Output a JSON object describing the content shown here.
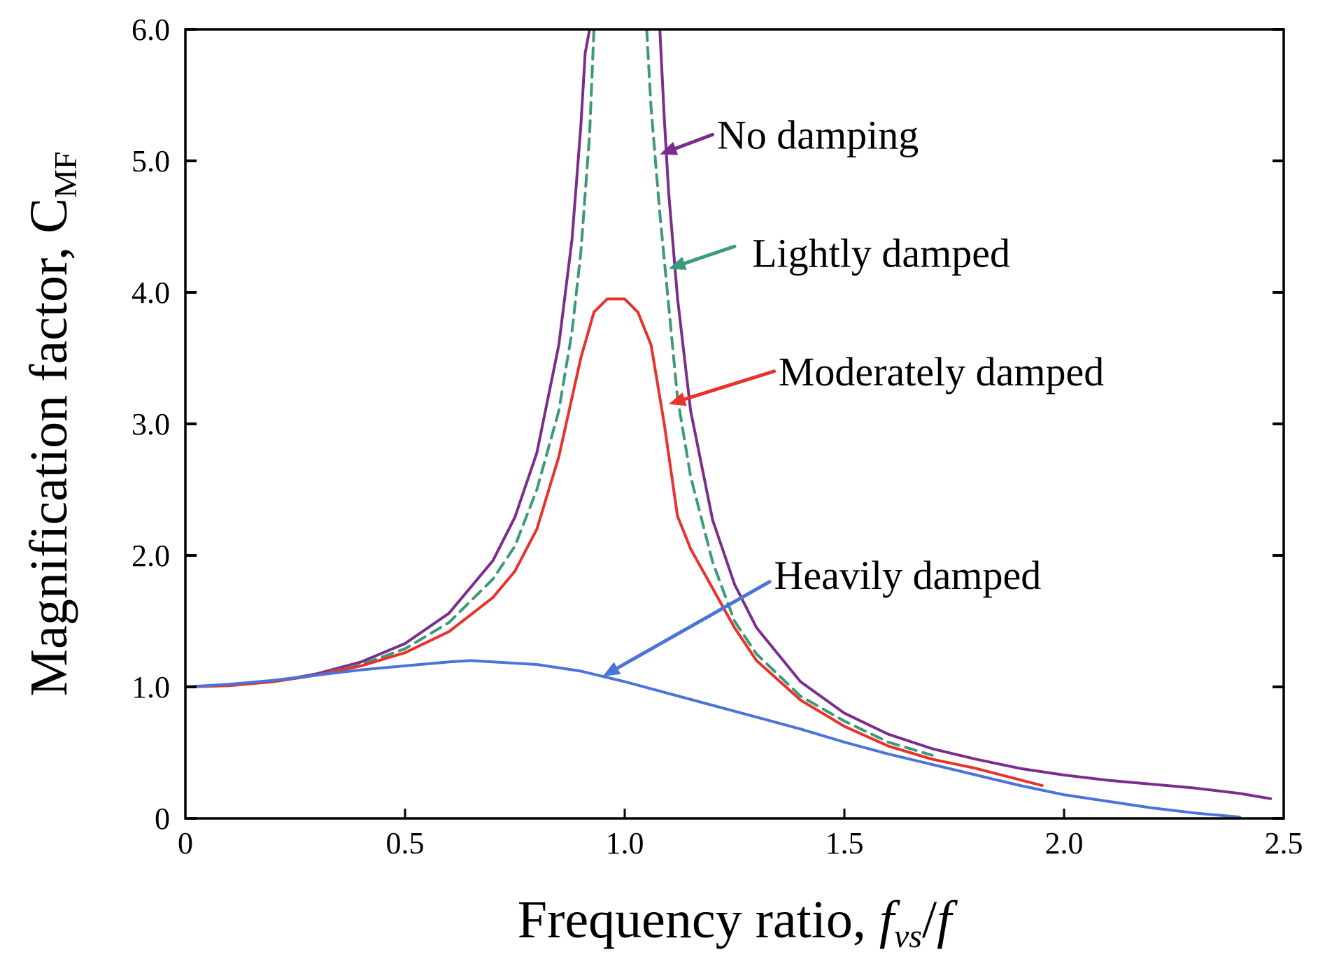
{
  "chart_data": {
    "type": "line",
    "title": "",
    "xlabel_main": "Frequency ratio, ",
    "xlabel_var1": "f",
    "xlabel_sub": "vs",
    "xlabel_slash": "/",
    "xlabel_var2": "f",
    "ylabel_main": "Magnification factor, C",
    "ylabel_sub": "MF",
    "xlim": [
      0,
      2.5
    ],
    "ylim": [
      0,
      6.0
    ],
    "x_ticks": [
      0,
      0.5,
      1.0,
      1.5,
      2.0,
      2.5
    ],
    "x_tick_labels": [
      "0",
      "0.5",
      "1.0",
      "1.5",
      "2.0",
      "2.5"
    ],
    "y_ticks": [
      0,
      1.0,
      2.0,
      3.0,
      4.0,
      5.0,
      6.0
    ],
    "y_tick_labels": [
      "0",
      "1.0",
      "2.0",
      "3.0",
      "4.0",
      "5.0",
      "6.0"
    ],
    "grid": false,
    "series": [
      {
        "name": "No damping",
        "color": "#7b2d8e",
        "dash": "solid",
        "x": [
          0,
          0.1,
          0.2,
          0.3,
          0.4,
          0.5,
          0.6,
          0.7,
          0.75,
          0.8,
          0.85,
          0.88,
          0.9,
          0.91,
          0.92,
          null,
          1.08,
          1.09,
          1.1,
          1.12,
          1.15,
          1.2,
          1.25,
          1.3,
          1.4,
          1.5,
          1.6,
          1.7,
          1.8,
          1.9,
          2.0,
          2.1,
          2.2,
          2.3,
          2.4,
          2.47
        ],
        "values": [
          1.0,
          1.01,
          1.04,
          1.1,
          1.19,
          1.33,
          1.56,
          1.96,
          2.29,
          2.78,
          3.6,
          4.4,
          5.26,
          5.82,
          6.0,
          null,
          6.0,
          5.33,
          4.76,
          3.96,
          3.1,
          2.27,
          1.78,
          1.45,
          1.04,
          0.8,
          0.64,
          0.53,
          0.45,
          0.38,
          0.33,
          0.29,
          0.26,
          0.23,
          0.19,
          0.15
        ]
      },
      {
        "name": "Lightly damped",
        "color": "#3a9a7a",
        "dash": "dashed",
        "x": [
          0,
          0.1,
          0.2,
          0.3,
          0.4,
          0.5,
          0.6,
          0.7,
          0.75,
          0.8,
          0.85,
          0.88,
          0.9,
          0.92,
          0.93,
          null,
          1.05,
          1.06,
          1.08,
          1.1,
          1.12,
          1.15,
          1.2,
          1.25,
          1.3,
          1.4,
          1.5,
          1.6,
          1.7
        ],
        "values": [
          1.0,
          1.01,
          1.04,
          1.09,
          1.17,
          1.29,
          1.49,
          1.82,
          2.07,
          2.5,
          3.1,
          3.7,
          4.3,
          5.2,
          6.0,
          null,
          6.0,
          5.4,
          4.6,
          3.9,
          3.2,
          2.6,
          1.95,
          1.5,
          1.25,
          0.93,
          0.74,
          0.58,
          0.48
        ]
      },
      {
        "name": "Moderately damped",
        "color": "#e8322c",
        "dash": "solid",
        "x": [
          0,
          0.1,
          0.2,
          0.3,
          0.4,
          0.5,
          0.6,
          0.7,
          0.75,
          0.8,
          0.85,
          0.9,
          0.93,
          0.96,
          1.0,
          1.03,
          1.06,
          1.09,
          1.12,
          1.15,
          1.2,
          1.25,
          1.3,
          1.4,
          1.5,
          1.6,
          1.7,
          1.8,
          1.95
        ],
        "values": [
          1.0,
          1.01,
          1.04,
          1.09,
          1.16,
          1.26,
          1.42,
          1.68,
          1.88,
          2.2,
          2.75,
          3.5,
          3.85,
          3.95,
          3.95,
          3.85,
          3.6,
          3.0,
          2.3,
          2.05,
          1.75,
          1.45,
          1.2,
          0.9,
          0.7,
          0.55,
          0.45,
          0.38,
          0.25
        ]
      },
      {
        "name": "Heavily damped",
        "color": "#4a74d8",
        "dash": "solid",
        "x": [
          0,
          0.1,
          0.2,
          0.3,
          0.4,
          0.5,
          0.6,
          0.65,
          0.7,
          0.8,
          0.9,
          1.0,
          1.1,
          1.2,
          1.3,
          1.4,
          1.5,
          1.6,
          1.7,
          1.8,
          1.9,
          2.0,
          2.1,
          2.2,
          2.3,
          2.4
        ],
        "values": [
          1.0,
          1.02,
          1.05,
          1.09,
          1.13,
          1.16,
          1.19,
          1.2,
          1.19,
          1.17,
          1.12,
          1.04,
          0.95,
          0.86,
          0.77,
          0.68,
          0.58,
          0.49,
          0.41,
          0.33,
          0.25,
          0.18,
          0.13,
          0.08,
          0.04,
          0.01
        ]
      }
    ],
    "annotations": [
      {
        "text": "No damping",
        "color": "#7b2d8e",
        "arrow_from": [
          1.2,
          5.2
        ],
        "arrow_to": [
          1.08,
          5.05
        ],
        "text_at": [
          1.21,
          5.2
        ]
      },
      {
        "text": "Lightly damped",
        "color": "#3a9a7a",
        "arrow_from": [
          1.25,
          4.35
        ],
        "arrow_to": [
          1.1,
          4.18
        ],
        "text_at": [
          1.29,
          4.3
        ]
      },
      {
        "text": "Moderately damped",
        "color": "#e8322c",
        "arrow_from": [
          1.34,
          3.4
        ],
        "arrow_to": [
          1.1,
          3.15
        ],
        "text_at": [
          1.35,
          3.4
        ]
      },
      {
        "text": "Heavily damped",
        "color": "#4a74d8",
        "arrow_from": [
          1.33,
          1.8
        ],
        "arrow_to": [
          0.95,
          1.08
        ],
        "text_at": [
          1.34,
          1.85
        ]
      }
    ]
  }
}
